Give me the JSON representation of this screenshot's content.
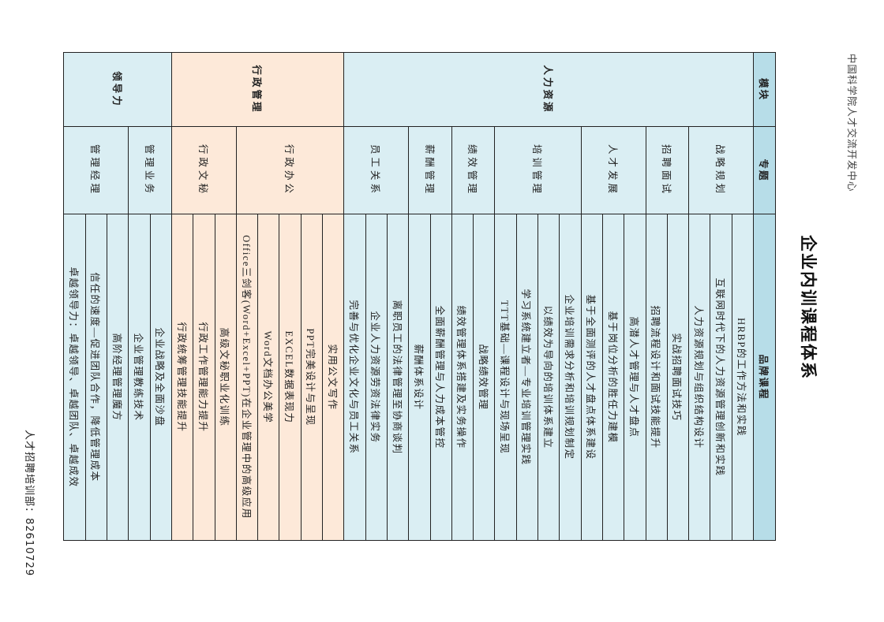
{
  "header": {
    "organization": "中国科学院人才交流开发中心",
    "title": "企业内训课程体系"
  },
  "table": {
    "columns": [
      "模块",
      "专题",
      "品牌课程"
    ],
    "colors": {
      "header": "#b7dde8",
      "blue": "#daeef3",
      "peach": "#fde9d9"
    },
    "modules": [
      {
        "name": "人力资源",
        "color": "blue",
        "topics": [
          {
            "name": "战略规划",
            "courses": [
              "HRBP的工作方法和实践",
              "互联网时代下的人力资源管理创新和实践",
              "人力资源规划与组织结构设计"
            ]
          },
          {
            "name": "招聘面试",
            "courses": [
              "实战招聘面试技巧",
              "招聘流程设计和面试技能提升"
            ]
          },
          {
            "name": "人才发展",
            "courses": [
              "高潜人才管理与人才盘点",
              "基于岗位分析的胜任力建模",
              "基于全面测评的人才盘点体系建设"
            ]
          },
          {
            "name": "培训管理",
            "courses": [
              "企业培训需求分析和培训规划制定",
              "以绩效为导向的培训体系建立",
              "学习系统建立者—专业培训管理实践",
              "TTT基础—课程设计与现场呈现"
            ]
          },
          {
            "name": "绩效管理",
            "courses": [
              "战略绩效管理",
              "绩效管理体系搭建及实务操作"
            ]
          },
          {
            "name": "薪酬管理",
            "courses": [
              "全面薪酬管理与人力成本管控",
              "薪酬体系设计"
            ]
          },
          {
            "name": "员工关系",
            "courses": [
              "离职员工的法律管理至协商谈判",
              "企业人力资源劳资法律实务",
              "完善与优化企业文化与员工关系"
            ]
          }
        ]
      },
      {
        "name": "行政管理",
        "color": "peach",
        "topics": [
          {
            "name": "行政办公",
            "courses": [
              "实用公文写作",
              "PPT完美设计与呈现",
              "EXCEL数据表现力",
              "Word文档办公美学",
              "Office三剑客(Word+Excel+PPT)在企业管理中的高级应用"
            ]
          },
          {
            "name": "行政文秘",
            "courses": [
              "高级文秘职业化训练",
              "行政工作管理能力提升",
              "行政统筹管理技能提升"
            ]
          }
        ]
      },
      {
        "name": "领导力",
        "color": "blue",
        "topics": [
          {
            "name": "管理业务",
            "courses": [
              "企业战略及全面沙盘",
              "企业管理教练技术"
            ]
          },
          {
            "name": "管理经理",
            "courses": [
              "高阶经理管理魔方",
              "信任的速度—促进团队合作，降低管理成本",
              "卓越领导力：卓越领导、卓越团队、卓越成效"
            ]
          }
        ]
      }
    ]
  },
  "footer": {
    "contact": "人才招聘培训部：82610729"
  }
}
